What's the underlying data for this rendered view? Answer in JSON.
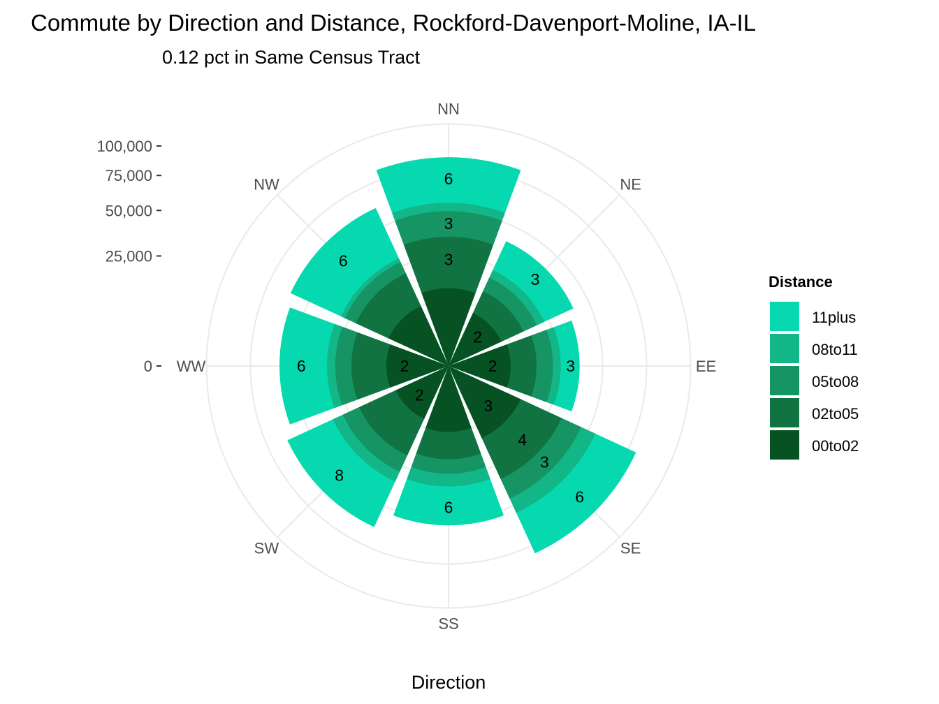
{
  "chart_data": {
    "type": "polar-stacked-bar",
    "title": "Commute by Direction and Distance, Rockford-Davenport-Moline, IA-IL",
    "subtitle": "0.12 pct in Same Census Tract",
    "xlabel": "Direction",
    "ylim": [
      0,
      100000
    ],
    "y_ticks": [
      {
        "value": 0,
        "label": "0"
      },
      {
        "value": 25000,
        "label": "25,000"
      },
      {
        "value": 50000,
        "label": "50,000"
      },
      {
        "value": 75000,
        "label": "75,000"
      },
      {
        "value": 100000,
        "label": "100,000"
      }
    ],
    "directions": [
      "NN",
      "NE",
      "EE",
      "SE",
      "SS",
      "SW",
      "WW",
      "NW"
    ],
    "grid": true,
    "legend": {
      "title": "Distance",
      "placement": "right",
      "entries": [
        {
          "name": "11plus",
          "color": "#06D9B0"
        },
        {
          "name": "08to11",
          "color": "#13B686"
        },
        {
          "name": "05to08",
          "color": "#169464"
        },
        {
          "name": "02to05",
          "color": "#117342"
        },
        {
          "name": "00to02",
          "color": "#075223"
        }
      ]
    },
    "series": [
      {
        "name": "00to02",
        "color": "#075223",
        "values": [
          12500,
          7000,
          8000,
          13000,
          9000,
          7000,
          8000,
          9000
        ]
      },
      {
        "name": "02to05",
        "color": "#117342",
        "values": [
          22000,
          7000,
          8000,
          19000,
          9000,
          13000,
          11500,
          12500
        ]
      },
      {
        "name": "05to08",
        "color": "#169464",
        "values": [
          15000,
          5500,
          6500,
          12000,
          6000,
          8000,
          7000,
          5500
        ]
      },
      {
        "name": "08to11",
        "color": "#13B686",
        "values": [
          5500,
          3500,
          3500,
          10000,
          6000,
          5500,
          4000,
          2000
        ]
      },
      {
        "name": "11plus",
        "color": "#06D9B0",
        "values": [
          35000,
          16000,
          9500,
          34000,
          22500,
          31500,
          28500,
          33500
        ]
      }
    ],
    "segment_labels": {
      "NN": [
        "",
        "3",
        "3",
        "",
        "6"
      ],
      "NE": [
        "2",
        "",
        "",
        "",
        "3"
      ],
      "EE": [
        "2",
        "",
        "",
        "",
        "3"
      ],
      "SE": [
        "3",
        "4",
        "3",
        "",
        "6"
      ],
      "SS": [
        "",
        "",
        "",
        "",
        "6"
      ],
      "SW": [
        "2",
        "",
        "",
        "",
        "8"
      ],
      "WW": [
        "2",
        "",
        "",
        "",
        "6"
      ],
      "NW": [
        "",
        "",
        "",
        "",
        "6"
      ]
    }
  }
}
